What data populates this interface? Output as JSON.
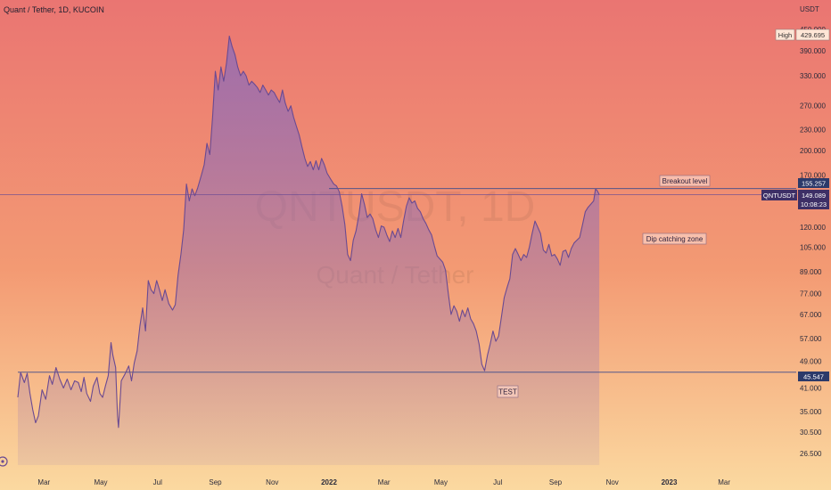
{
  "header": {
    "symbol_title": "Quant / Tether, 1D, KUCOIN",
    "currency": "USDT"
  },
  "watermark": {
    "ticker": "QNTUSDT, 1D",
    "name": "Quant / Tether"
  },
  "price_tags": {
    "high_label": "High",
    "high_value": "429.695",
    "upper_level": "155.257",
    "symbol": "QNTUSDT",
    "last_price": "149.089",
    "countdown": "10:08:23",
    "lower_level": "45.547"
  },
  "annotations": {
    "breakout": "Breakout level",
    "dip_zone": "Dip catching zone",
    "test": "TEST"
  },
  "colors": {
    "bg_top": "#ea7572",
    "bg_mid": "#f39a73",
    "bg_bottom": "#fbd9a0",
    "line": "#6a4a92",
    "area_top": "#8e6cb8",
    "level_line": "#3b4a8c",
    "tag_dark": "#2c3a6a",
    "tag_symbol": "#3d2f66"
  },
  "chart_data": {
    "type": "area",
    "title": "Quant / Tether, 1D, KUCOIN",
    "y_unit": "USDT",
    "y_scale": "log",
    "ylim": [
      24.5,
      480
    ],
    "xlim": [
      "2021-02-01",
      "2023-04-12"
    ],
    "y_ticks": [
      "450.000",
      "390.000",
      "330.000",
      "270.000",
      "230.000",
      "200.000",
      "170.000",
      "140.000",
      "120.000",
      "105.000",
      "89.000",
      "77.000",
      "67.000",
      "57.000",
      "49.000",
      "41.000",
      "35.000",
      "30.500",
      "26.500"
    ],
    "x_ticks": [
      {
        "date": "2021-03-01",
        "label": "Mar"
      },
      {
        "date": "2021-05-01",
        "label": "May"
      },
      {
        "date": "2021-07-01",
        "label": "Jul"
      },
      {
        "date": "2021-09-01",
        "label": "Sep"
      },
      {
        "date": "2021-11-01",
        "label": "Nov"
      },
      {
        "date": "2022-01-01",
        "label": "2022"
      },
      {
        "date": "2022-03-01",
        "label": "Mar"
      },
      {
        "date": "2022-05-01",
        "label": "May"
      },
      {
        "date": "2022-07-01",
        "label": "Jul"
      },
      {
        "date": "2022-09-01",
        "label": "Sep"
      },
      {
        "date": "2022-11-01",
        "label": "Nov"
      },
      {
        "date": "2023-01-01",
        "label": "2023"
      },
      {
        "date": "2023-03-01",
        "label": "Mar"
      }
    ],
    "horizontal_levels": [
      155.257,
      149.089,
      45.547
    ],
    "series": [
      {
        "values": [
          [
            "2021-02-01",
            38.5
          ],
          [
            "2021-02-04",
            45.5
          ],
          [
            "2021-02-08",
            42.5
          ],
          [
            "2021-02-11",
            45.2
          ],
          [
            "2021-02-14",
            39.5
          ],
          [
            "2021-02-17",
            35.5
          ],
          [
            "2021-02-20",
            32.5
          ],
          [
            "2021-02-23",
            34.0
          ],
          [
            "2021-02-27",
            40.5
          ],
          [
            "2021-03-03",
            38.0
          ],
          [
            "2021-03-07",
            44.5
          ],
          [
            "2021-03-10",
            42.0
          ],
          [
            "2021-03-14",
            47.0
          ],
          [
            "2021-03-18",
            43.5
          ],
          [
            "2021-03-22",
            41.0
          ],
          [
            "2021-03-26",
            43.5
          ],
          [
            "2021-03-30",
            40.5
          ],
          [
            "2021-04-03",
            43.0
          ],
          [
            "2021-04-07",
            42.5
          ],
          [
            "2021-04-10",
            40.0
          ],
          [
            "2021-04-13",
            44.0
          ],
          [
            "2021-04-16",
            39.5
          ],
          [
            "2021-04-20",
            37.5
          ],
          [
            "2021-04-23",
            41.5
          ],
          [
            "2021-04-27",
            44.0
          ],
          [
            "2021-04-30",
            39.5
          ],
          [
            "2021-05-03",
            38.5
          ],
          [
            "2021-05-06",
            41.5
          ],
          [
            "2021-05-09",
            44.5
          ],
          [
            "2021-05-12",
            55.5
          ],
          [
            "2021-05-14",
            51.0
          ],
          [
            "2021-05-17",
            47.0
          ],
          [
            "2021-05-19",
            34.0
          ],
          [
            "2021-05-20",
            31.5
          ],
          [
            "2021-05-23",
            43.0
          ],
          [
            "2021-05-27",
            45.0
          ],
          [
            "2021-05-31",
            47.5
          ],
          [
            "2021-06-03",
            43.0
          ],
          [
            "2021-06-06",
            48.5
          ],
          [
            "2021-06-09",
            52.5
          ],
          [
            "2021-06-12",
            62.0
          ],
          [
            "2021-06-15",
            70.0
          ],
          [
            "2021-06-18",
            60.0
          ],
          [
            "2021-06-21",
            84.0
          ],
          [
            "2021-06-24",
            79.0
          ],
          [
            "2021-06-27",
            77.0
          ],
          [
            "2021-06-30",
            84.0
          ],
          [
            "2021-07-03",
            79.0
          ],
          [
            "2021-07-06",
            73.5
          ],
          [
            "2021-07-09",
            79.0
          ],
          [
            "2021-07-13",
            72.0
          ],
          [
            "2021-07-17",
            69.0
          ],
          [
            "2021-07-20",
            71.5
          ],
          [
            "2021-07-23",
            87.0
          ],
          [
            "2021-07-26",
            100.0
          ],
          [
            "2021-07-29",
            118.0
          ],
          [
            "2021-08-01",
            160.0
          ],
          [
            "2021-08-04",
            143.0
          ],
          [
            "2021-08-07",
            155.0
          ],
          [
            "2021-08-10",
            148.0
          ],
          [
            "2021-08-13",
            156.0
          ],
          [
            "2021-08-17",
            170.0
          ],
          [
            "2021-08-20",
            182.0
          ],
          [
            "2021-08-23",
            210.0
          ],
          [
            "2021-08-26",
            195.0
          ],
          [
            "2021-08-29",
            250.0
          ],
          [
            "2021-09-01",
            340.0
          ],
          [
            "2021-09-04",
            300.0
          ],
          [
            "2021-09-07",
            350.0
          ],
          [
            "2021-09-10",
            318.0
          ],
          [
            "2021-09-13",
            360.0
          ],
          [
            "2021-09-16",
            430.0
          ],
          [
            "2021-09-19",
            400.0
          ],
          [
            "2021-09-22",
            380.0
          ],
          [
            "2021-09-25",
            350.0
          ],
          [
            "2021-09-28",
            330.0
          ],
          [
            "2021-10-01",
            340.0
          ],
          [
            "2021-10-04",
            330.0
          ],
          [
            "2021-10-07",
            310.0
          ],
          [
            "2021-10-10",
            318.0
          ],
          [
            "2021-10-13",
            312.0
          ],
          [
            "2021-10-16",
            305.0
          ],
          [
            "2021-10-19",
            295.0
          ],
          [
            "2021-10-22",
            310.0
          ],
          [
            "2021-10-25",
            300.0
          ],
          [
            "2021-10-28",
            290.0
          ],
          [
            "2021-10-31",
            300.0
          ],
          [
            "2021-11-03",
            295.0
          ],
          [
            "2021-11-06",
            285.0
          ],
          [
            "2021-11-09",
            276.0
          ],
          [
            "2021-11-12",
            300.0
          ],
          [
            "2021-11-15",
            275.0
          ],
          [
            "2021-11-18",
            260.0
          ],
          [
            "2021-11-21",
            270.0
          ],
          [
            "2021-11-24",
            250.0
          ],
          [
            "2021-11-27",
            235.0
          ],
          [
            "2021-11-30",
            222.0
          ],
          [
            "2021-12-03",
            205.0
          ],
          [
            "2021-12-06",
            190.0
          ],
          [
            "2021-12-09",
            180.0
          ],
          [
            "2021-12-12",
            186.0
          ],
          [
            "2021-12-15",
            176.0
          ],
          [
            "2021-12-18",
            187.0
          ],
          [
            "2021-12-21",
            176.0
          ],
          [
            "2021-12-24",
            190.0
          ],
          [
            "2021-12-27",
            182.0
          ],
          [
            "2021-12-30",
            172.0
          ],
          [
            "2022-01-03",
            165.0
          ],
          [
            "2022-01-06",
            160.0
          ],
          [
            "2022-01-09",
            158.0
          ],
          [
            "2022-01-12",
            152.0
          ],
          [
            "2022-01-15",
            138.0
          ],
          [
            "2022-01-18",
            122.0
          ],
          [
            "2022-01-21",
            100.0
          ],
          [
            "2022-01-24",
            96.0
          ],
          [
            "2022-01-27",
            110.0
          ],
          [
            "2022-01-30",
            117.0
          ],
          [
            "2022-02-02",
            130.0
          ],
          [
            "2022-02-05",
            150.0
          ],
          [
            "2022-02-08",
            140.0
          ],
          [
            "2022-02-11",
            128.0
          ],
          [
            "2022-02-14",
            131.0
          ],
          [
            "2022-02-17",
            127.0
          ],
          [
            "2022-02-20",
            118.0
          ],
          [
            "2022-02-23",
            112.0
          ],
          [
            "2022-02-26",
            121.0
          ],
          [
            "2022-03-01",
            120.0
          ],
          [
            "2022-03-04",
            114.0
          ],
          [
            "2022-03-07",
            109.0
          ],
          [
            "2022-03-10",
            117.0
          ],
          [
            "2022-03-13",
            112.0
          ],
          [
            "2022-03-16",
            119.0
          ],
          [
            "2022-03-19",
            112.0
          ],
          [
            "2022-03-22",
            125.0
          ],
          [
            "2022-03-25",
            138.0
          ],
          [
            "2022-03-28",
            146.0
          ],
          [
            "2022-03-31",
            141.0
          ],
          [
            "2022-04-03",
            143.0
          ],
          [
            "2022-04-06",
            136.0
          ],
          [
            "2022-04-09",
            133.0
          ],
          [
            "2022-04-12",
            127.0
          ],
          [
            "2022-04-15",
            123.0
          ],
          [
            "2022-04-18",
            118.0
          ],
          [
            "2022-04-21",
            114.0
          ],
          [
            "2022-04-24",
            106.0
          ],
          [
            "2022-04-27",
            99.0
          ],
          [
            "2022-04-30",
            97.0
          ],
          [
            "2022-05-03",
            95.0
          ],
          [
            "2022-05-06",
            90.0
          ],
          [
            "2022-05-09",
            77.0
          ],
          [
            "2022-05-12",
            67.0
          ],
          [
            "2022-05-15",
            71.0
          ],
          [
            "2022-05-18",
            68.5
          ],
          [
            "2022-05-21",
            64.0
          ],
          [
            "2022-05-24",
            69.0
          ],
          [
            "2022-05-27",
            66.0
          ],
          [
            "2022-05-30",
            70.0
          ],
          [
            "2022-06-02",
            65.0
          ],
          [
            "2022-06-05",
            63.0
          ],
          [
            "2022-06-08",
            60.0
          ],
          [
            "2022-06-11",
            55.0
          ],
          [
            "2022-06-14",
            48.0
          ],
          [
            "2022-06-17",
            46.0
          ],
          [
            "2022-06-20",
            51.0
          ],
          [
            "2022-06-23",
            55.0
          ],
          [
            "2022-06-26",
            60.0
          ],
          [
            "2022-06-29",
            56.0
          ],
          [
            "2022-07-02",
            58.0
          ],
          [
            "2022-07-05",
            66.0
          ],
          [
            "2022-07-08",
            75.0
          ],
          [
            "2022-07-11",
            80.0
          ],
          [
            "2022-07-14",
            85.0
          ],
          [
            "2022-07-17",
            100.0
          ],
          [
            "2022-07-20",
            104.0
          ],
          [
            "2022-07-23",
            100.0
          ],
          [
            "2022-07-26",
            96.0
          ],
          [
            "2022-07-29",
            100.0
          ],
          [
            "2022-08-01",
            98.0
          ],
          [
            "2022-08-04",
            105.0
          ],
          [
            "2022-08-07",
            115.0
          ],
          [
            "2022-08-10",
            125.0
          ],
          [
            "2022-08-13",
            120.0
          ],
          [
            "2022-08-16",
            115.0
          ],
          [
            "2022-08-19",
            103.0
          ],
          [
            "2022-08-22",
            101.0
          ],
          [
            "2022-08-25",
            107.0
          ],
          [
            "2022-08-28",
            99.0
          ],
          [
            "2022-08-31",
            100.0
          ],
          [
            "2022-09-03",
            97.0
          ],
          [
            "2022-09-06",
            93.0
          ],
          [
            "2022-09-09",
            102.0
          ],
          [
            "2022-09-12",
            103.0
          ],
          [
            "2022-09-15",
            98.0
          ],
          [
            "2022-09-18",
            104.0
          ],
          [
            "2022-09-21",
            108.0
          ],
          [
            "2022-09-24",
            110.0
          ],
          [
            "2022-09-27",
            112.0
          ],
          [
            "2022-09-30",
            122.0
          ],
          [
            "2022-10-03",
            133.0
          ],
          [
            "2022-10-06",
            137.0
          ],
          [
            "2022-10-09",
            140.0
          ],
          [
            "2022-10-12",
            143.0
          ],
          [
            "2022-10-14",
            155.0
          ],
          [
            "2022-10-16",
            153.0
          ],
          [
            "2022-10-18",
            149.1
          ]
        ]
      }
    ]
  }
}
